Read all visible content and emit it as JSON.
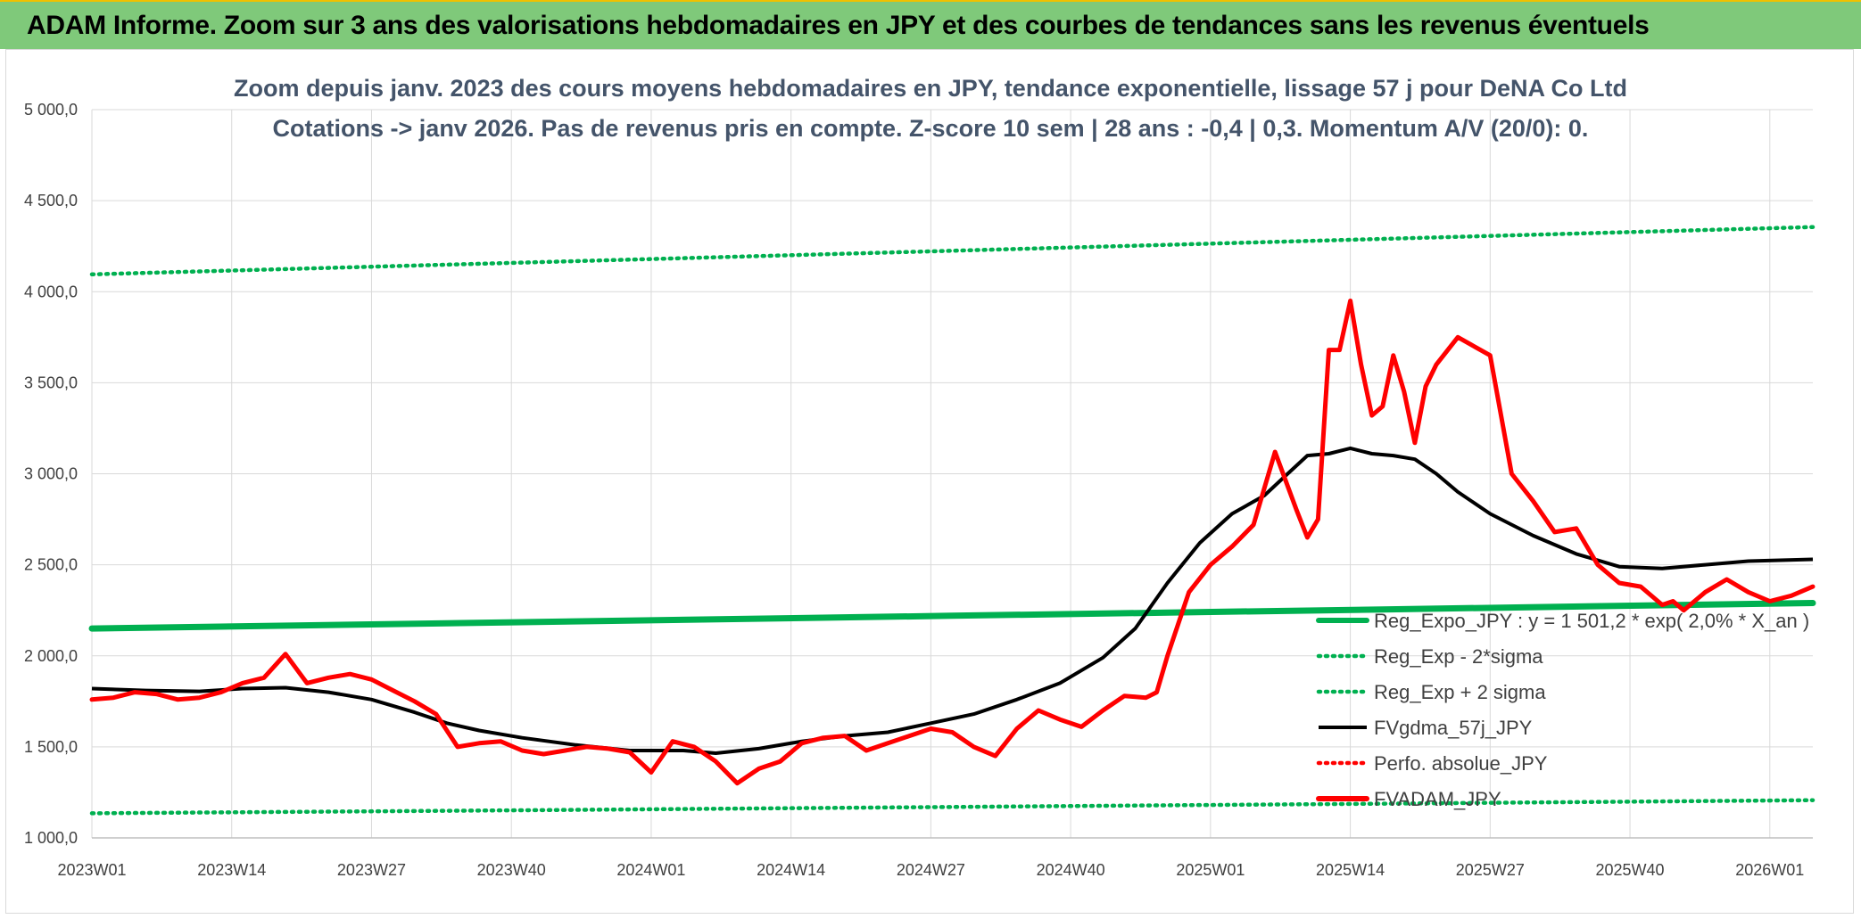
{
  "header": {
    "title": "ADAM Informe. Zoom sur 3 ans des valorisations hebdomadaires en JPY et des courbes de tendances sans les revenus éventuels"
  },
  "colors": {
    "banner": "#7fc97a",
    "reg_expo": "#00b050",
    "fvgdma": "#000000",
    "fvadam": "#ff0000"
  },
  "chart_data": {
    "type": "line",
    "title_line1": "Zoom depuis janv. 2023 des cours moyens hebdomadaires en JPY, tendance exponentielle, lissage 57 j pour DeNA Co Ltd",
    "title_line2": "Cotations -> janv 2026. Pas de revenus pris en compte. Z-score 10 sem | 28 ans : -0,4 | 0,3. Momentum A/V (20/0): 0.",
    "ylim": [
      1000,
      5000
    ],
    "y_ticks": [
      "1 000,0",
      "1 500,0",
      "2 000,0",
      "2 500,0",
      "3 000,0",
      "3 500,0",
      "4 000,0",
      "4 500,0",
      "5 000,0"
    ],
    "y_tick_values": [
      1000,
      1500,
      2000,
      2500,
      3000,
      3500,
      4000,
      4500,
      5000
    ],
    "x_range": [
      0,
      160
    ],
    "x_ticks": [
      "2023W01",
      "2023W14",
      "2023W27",
      "2023W40",
      "2024W01",
      "2024W14",
      "2024W27",
      "2024W40",
      "2025W01",
      "2025W14",
      "2025W27",
      "2025W40",
      "2026W01"
    ],
    "x_tick_values": [
      0,
      13,
      26,
      39,
      52,
      65,
      78,
      91,
      104,
      117,
      130,
      143,
      156
    ],
    "series": [
      {
        "name": "Reg_Expo_JPY : y = 1 501,2 * exp( 2,0% *  X_an )",
        "style": "solid-thick",
        "color": "#00b050",
        "x": [
          0,
          40,
          80,
          120,
          160
        ],
        "values": [
          2150,
          2185,
          2220,
          2255,
          2290
        ]
      },
      {
        "name": "Reg_Exp - 2*sigma",
        "style": "dotted",
        "color": "#00b050",
        "x": [
          0,
          40,
          80,
          120,
          160
        ],
        "values": [
          1135,
          1152,
          1170,
          1188,
          1207
        ]
      },
      {
        "name": "Reg_Exp + 2 sigma",
        "style": "dotted",
        "color": "#00b050",
        "x": [
          0,
          40,
          80,
          120,
          160
        ],
        "values": [
          4095,
          4160,
          4225,
          4290,
          4355
        ]
      },
      {
        "name": "FVgdma_57j_JPY",
        "style": "solid",
        "color": "#000000",
        "x": [
          0,
          5,
          10,
          14,
          18,
          22,
          26,
          30,
          33,
          36,
          40,
          45,
          50,
          55,
          58,
          62,
          66,
          70,
          74,
          78,
          82,
          86,
          90,
          94,
          97,
          100,
          103,
          106,
          109,
          111,
          113,
          115,
          117,
          119,
          121,
          123,
          125,
          127,
          130,
          134,
          138,
          142,
          146,
          150,
          154,
          160
        ],
        "values": [
          1820,
          1810,
          1805,
          1820,
          1825,
          1800,
          1760,
          1690,
          1630,
          1590,
          1550,
          1510,
          1480,
          1480,
          1465,
          1490,
          1530,
          1560,
          1580,
          1630,
          1680,
          1760,
          1850,
          1990,
          2150,
          2400,
          2620,
          2780,
          2880,
          2990,
          3100,
          3110,
          3140,
          3110,
          3100,
          3080,
          3000,
          2900,
          2780,
          2660,
          2560,
          2490,
          2480,
          2500,
          2520,
          2530
        ]
      },
      {
        "name": "Perfo. absolue_JPY",
        "style": "dotted",
        "color": "#ff0000",
        "x": [],
        "values": []
      },
      {
        "name": "FVADAM_JPY",
        "style": "solid-thick",
        "color": "#ff0000",
        "x": [
          0,
          2,
          4,
          6,
          8,
          10,
          12,
          14,
          16,
          18,
          20,
          22,
          24,
          26,
          28,
          30,
          32,
          34,
          36,
          38,
          40,
          42,
          44,
          46,
          48,
          50,
          52,
          54,
          56,
          58,
          60,
          62,
          64,
          66,
          68,
          70,
          72,
          74,
          76,
          78,
          80,
          82,
          84,
          86,
          88,
          90,
          92,
          94,
          96,
          98,
          99,
          100,
          102,
          104,
          106,
          108,
          110,
          112,
          113,
          114,
          115,
          116,
          117,
          118,
          119,
          120,
          121,
          122,
          123,
          124,
          125,
          127,
          130,
          132,
          134,
          136,
          138,
          140,
          142,
          144,
          146,
          147,
          148,
          150,
          152,
          154,
          156,
          158,
          160
        ],
        "values": [
          1760,
          1770,
          1800,
          1790,
          1760,
          1770,
          1800,
          1850,
          1880,
          2010,
          1850,
          1880,
          1900,
          1870,
          1810,
          1750,
          1680,
          1500,
          1520,
          1530,
          1480,
          1460,
          1480,
          1500,
          1490,
          1470,
          1360,
          1530,
          1500,
          1420,
          1300,
          1380,
          1420,
          1520,
          1550,
          1560,
          1480,
          1520,
          1560,
          1600,
          1580,
          1500,
          1450,
          1600,
          1700,
          1650,
          1610,
          1700,
          1780,
          1770,
          1800,
          2000,
          2350,
          2500,
          2600,
          2720,
          3120,
          2800,
          2650,
          2750,
          3680,
          3680,
          3950,
          3600,
          3320,
          3370,
          3650,
          3450,
          3170,
          3480,
          3600,
          3750,
          3650,
          3000,
          2850,
          2680,
          2700,
          2500,
          2400,
          2380,
          2280,
          2300,
          2250,
          2350,
          2420,
          2350,
          2300,
          2330,
          2380
        ]
      }
    ],
    "legend": [
      {
        "label": "Reg_Expo_JPY : y = 1 501,2 * exp( 2,0% *  X_an )",
        "style": "solid-thick",
        "color": "#00b050"
      },
      {
        "label": "Reg_Exp - 2*sigma",
        "style": "dotted",
        "color": "#00b050"
      },
      {
        "label": "Reg_Exp + 2 sigma",
        "style": "dotted",
        "color": "#00b050"
      },
      {
        "label": "FVgdma_57j_JPY",
        "style": "solid",
        "color": "#000000"
      },
      {
        "label": "Perfo. absolue_JPY",
        "style": "dotted",
        "color": "#ff0000"
      },
      {
        "label": "FVADAM_JPY",
        "style": "solid-thick",
        "color": "#ff0000"
      }
    ],
    "legend_position": "bottom-right",
    "grid": true
  }
}
